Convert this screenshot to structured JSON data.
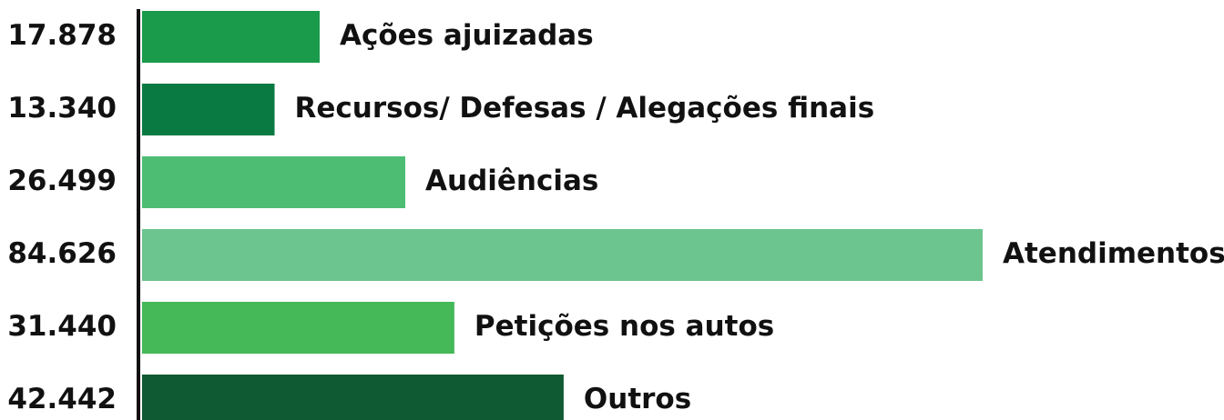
{
  "chart_data": {
    "type": "bar",
    "orientation": "horizontal",
    "categories": [
      "Ações ajuizadas",
      "Recursos/ Defesas / Alegações finais",
      "Audiências",
      "Atendimentos",
      "Petições nos autos",
      "Outros"
    ],
    "values": [
      17878,
      13340,
      26499,
      84626,
      31440,
      42442
    ],
    "value_labels": [
      "17.878",
      "13.340",
      "26.499",
      "84.626",
      "31.440",
      "42.442"
    ],
    "colors": [
      "#1a9b4b",
      "#0a7a43",
      "#4dbd74",
      "#6cc48e",
      "#45b857",
      "#0f5a32"
    ]
  }
}
